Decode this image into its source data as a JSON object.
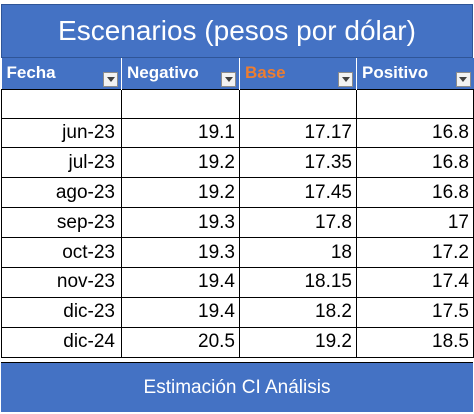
{
  "title": "Escenarios (pesos por dólar)",
  "columns": [
    "Fecha",
    "Negativo",
    "Base",
    "Positivo"
  ],
  "rows": [
    [
      "jun-23",
      "19.1",
      "17.17",
      "16.8"
    ],
    [
      "jul-23",
      "19.2",
      "17.35",
      "16.8"
    ],
    [
      "ago-23",
      "19.2",
      "17.45",
      "16.8"
    ],
    [
      "sep-23",
      "19.3",
      "17.8",
      "17"
    ],
    [
      "oct-23",
      "19.3",
      "18",
      "17.2"
    ],
    [
      "nov-23",
      "19.4",
      "18.15",
      "17.4"
    ],
    [
      "dic-23",
      "19.4",
      "18.2",
      "17.5"
    ],
    [
      "dic-24",
      "20.5",
      "19.2",
      "18.5"
    ]
  ],
  "footer": "Estimación CI Análisis",
  "colors": {
    "header_bg": "#4472c4",
    "base_header_text": "#ed7d31"
  },
  "icons": {
    "filter": "filter-dropdown-icon"
  }
}
